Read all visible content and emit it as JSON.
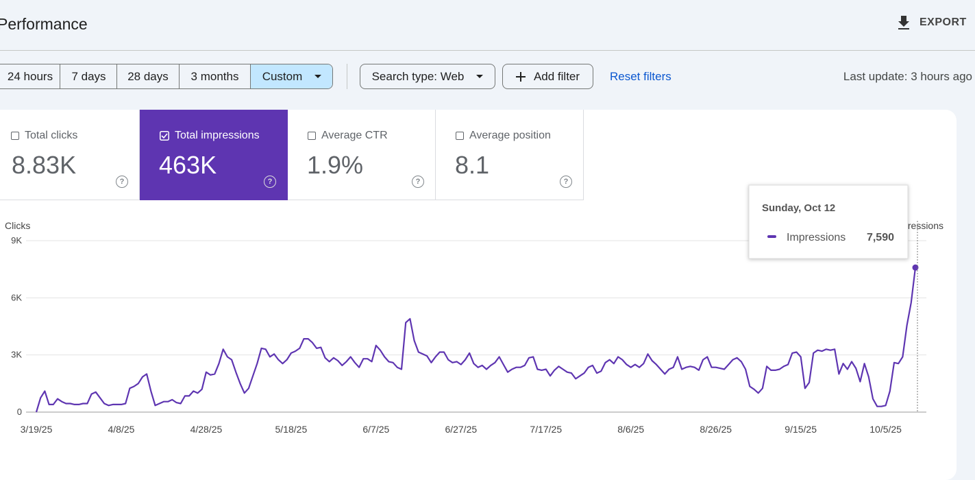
{
  "header": {
    "title": "Performance",
    "export": "EXPORT"
  },
  "toolbar": {
    "ranges": [
      "24 hours",
      "7 days",
      "28 days",
      "3 months",
      "Custom"
    ],
    "search_type": "Search type: Web",
    "add_filter": "Add filter",
    "reset": "Reset filters",
    "last_update": "Last update: 3 hours ago"
  },
  "metrics": [
    {
      "label": "Total clicks",
      "value": "8.83K"
    },
    {
      "label": "Total impressions",
      "value": "463K"
    },
    {
      "label": "Average CTR",
      "value": "1.9%"
    },
    {
      "label": "Average position",
      "value": "8.1"
    }
  ],
  "chart_data": {
    "type": "line",
    "ylabel": "Clicks",
    "y2label": "Impressions",
    "categories": [
      "3/19/25",
      null,
      null,
      null,
      null,
      null,
      null,
      null,
      null,
      null,
      null,
      null,
      null,
      null,
      null,
      null,
      null,
      null,
      null,
      null,
      "4/8/25",
      null,
      null,
      null,
      null,
      null,
      null,
      null,
      null,
      null,
      null,
      null,
      null,
      null,
      null,
      null,
      null,
      null,
      null,
      null,
      "4/28/25",
      null,
      null,
      null,
      null,
      null,
      null,
      null,
      null,
      null,
      null,
      null,
      null,
      null,
      null,
      null,
      null,
      null,
      null,
      null,
      "5/18/25",
      null,
      null,
      null,
      null,
      null,
      null,
      null,
      null,
      null,
      null,
      null,
      null,
      null,
      null,
      null,
      null,
      null,
      null,
      null,
      "6/7/25",
      null,
      null,
      null,
      null,
      null,
      null,
      null,
      null,
      null,
      null,
      null,
      null,
      null,
      null,
      null,
      null,
      null,
      null,
      null,
      "6/27/25",
      null,
      null,
      null,
      null,
      null,
      null,
      null,
      null,
      null,
      null,
      null,
      null,
      null,
      null,
      null,
      null,
      null,
      null,
      null,
      "7/17/25",
      null,
      null,
      null,
      null,
      null,
      null,
      null,
      null,
      null,
      null,
      null,
      null,
      null,
      null,
      null,
      null,
      null,
      null,
      null,
      "8/6/25",
      null,
      null,
      null,
      null,
      null,
      null,
      null,
      null,
      null,
      null,
      null,
      null,
      null,
      null,
      null,
      null,
      null,
      null,
      null,
      "8/26/25",
      null,
      null,
      null,
      null,
      null,
      null,
      null,
      null,
      null,
      null,
      null,
      null,
      null,
      null,
      null,
      null,
      null,
      null,
      null,
      "9/15/25",
      null,
      null,
      null,
      null,
      null,
      null,
      null,
      null,
      null,
      null,
      null,
      null,
      null,
      null,
      null,
      null,
      null,
      null,
      null,
      "10/5/25",
      null,
      null,
      null,
      null,
      null,
      null,
      null
    ],
    "series": [
      {
        "name": "Impressions",
        "color": "#5e35b1",
        "values": [
          0,
          750,
          1100,
          400,
          400,
          700,
          550,
          450,
          450,
          400,
          400,
          450,
          450,
          950,
          1050,
          750,
          450,
          350,
          400,
          400,
          400,
          450,
          1250,
          1350,
          1500,
          1850,
          2000,
          1100,
          350,
          450,
          550,
          550,
          650,
          500,
          450,
          850,
          850,
          1100,
          1000,
          1200,
          2100,
          1950,
          2000,
          2550,
          3300,
          2900,
          2750,
          2100,
          1500,
          1000,
          1250,
          1900,
          2550,
          3350,
          3300,
          2900,
          3050,
          2750,
          2550,
          2750,
          3100,
          3200,
          3350,
          3850,
          3850,
          3650,
          3350,
          3400,
          2850,
          2650,
          2850,
          2700,
          2450,
          2650,
          2900,
          2600,
          2350,
          2800,
          2800,
          2650,
          3500,
          3250,
          2900,
          2650,
          2600,
          2350,
          2250,
          4700,
          4900,
          3750,
          3150,
          3050,
          2950,
          2600,
          2900,
          3150,
          3150,
          2750,
          2600,
          2650,
          2500,
          2750,
          3100,
          2550,
          2350,
          2450,
          2250,
          2450,
          2600,
          2900,
          2500,
          2100,
          2250,
          2350,
          2350,
          2450,
          2850,
          2900,
          2250,
          2200,
          2250,
          1900,
          2200,
          2400,
          2250,
          2100,
          2050,
          1750,
          1900,
          2050,
          2350,
          2450,
          2050,
          2150,
          2600,
          2750,
          2550,
          2900,
          2750,
          2500,
          2350,
          2500,
          2350,
          2550,
          3050,
          2700,
          2500,
          2250,
          2000,
          2250,
          2350,
          2900,
          2250,
          2350,
          2400,
          2350,
          2200,
          2750,
          2900,
          2350,
          2350,
          2300,
          2250,
          2500,
          2750,
          2850,
          2650,
          2250,
          1350,
          1200,
          1000,
          1250,
          2400,
          2200,
          2200,
          2250,
          2400,
          2500,
          3100,
          3150,
          2900,
          1250,
          1550,
          3100,
          3250,
          3200,
          3300,
          3250,
          3300,
          2000,
          2550,
          2250,
          2650,
          2300,
          1600,
          2550,
          1850,
          700,
          300,
          300,
          350,
          1100,
          2600,
          2550,
          2900,
          4550,
          5750,
          7590
        ]
      }
    ],
    "ylim": [
      0,
      9000
    ],
    "yticks": [
      0,
      {
        "value": 3000,
        "label": "3K"
      },
      {
        "value": 6000,
        "label": "6K"
      },
      {
        "value": 9000,
        "label": "9K"
      }
    ],
    "grid": true,
    "tooltip": {
      "title": "Sunday, Oct 12",
      "label": "7,590"
    }
  }
}
